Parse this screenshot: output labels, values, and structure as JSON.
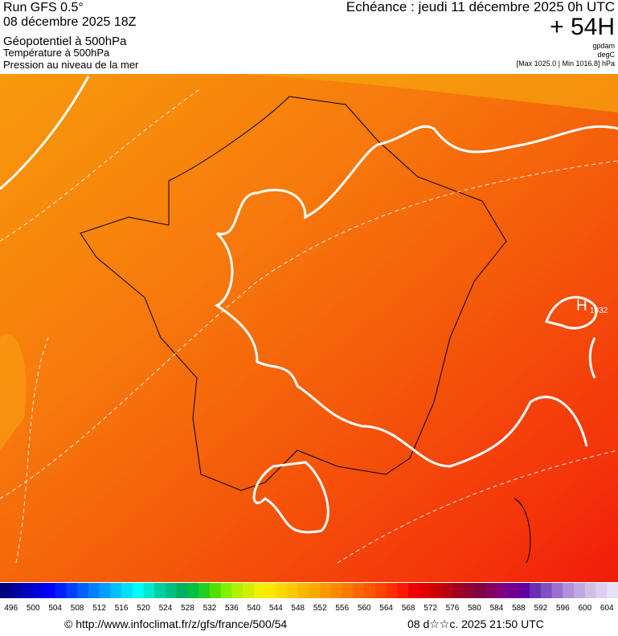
{
  "header": {
    "run": "Run GFS 0.5°",
    "date": "08 décembre 2025 18Z",
    "line1": "Géopotentiel à 500hPa",
    "line2": "Température à 500hPa",
    "line3": "Pression au niveau de la mer",
    "echeance": "Echéance : jeudi 11 décembre 2025 0h UTC",
    "lead": "+ 54H",
    "unit1": "gpdam",
    "unit2": "degC",
    "pressure": "[Max 1025.0 | Min 1016.8] hPa"
  },
  "map": {
    "high": "H",
    "high_value": "1032"
  },
  "colorbar": {
    "labels": [
      "496",
      "500",
      "504",
      "508",
      "512",
      "516",
      "520",
      "524",
      "528",
      "532",
      "536",
      "540",
      "544",
      "548",
      "552",
      "556",
      "560",
      "564",
      "568",
      "572",
      "576",
      "580",
      "584",
      "588",
      "592",
      "596",
      "600",
      "604"
    ],
    "colors": [
      "#00007f",
      "#00009f",
      "#0000bf",
      "#0000df",
      "#0000ff",
      "#0020ff",
      "#0040ff",
      "#0060ff",
      "#0080ff",
      "#009fff",
      "#00bfff",
      "#00dfff",
      "#00ffff",
      "#00e8d0",
      "#00d0a0",
      "#00c080",
      "#00b060",
      "#00c040",
      "#20d020",
      "#50e000",
      "#80f000",
      "#b0f000",
      "#d0f000",
      "#f0f000",
      "#ffe800",
      "#ffd800",
      "#ffc800",
      "#ffb800",
      "#ffa800",
      "#ff9800",
      "#ff8800",
      "#ff7800",
      "#ff6800",
      "#ff5800",
      "#ff4400",
      "#ff3000",
      "#ff1800",
      "#f00000",
      "#e00000",
      "#cc0000",
      "#b80010",
      "#a00020",
      "#900030",
      "#800040",
      "#800060",
      "#800080",
      "#700090",
      "#6000a0",
      "#6830b0",
      "#8050c0",
      "#9870d0",
      "#b090d8",
      "#c0a8e0",
      "#d0c0e8",
      "#dcd0f0",
      "#e8e0f4"
    ]
  },
  "footer": {
    "url": "© http://www.infoclimat.fr/z/gfs/france/500/54",
    "stamp": "08 d☆☆c. 2025 21:50 UTC"
  }
}
